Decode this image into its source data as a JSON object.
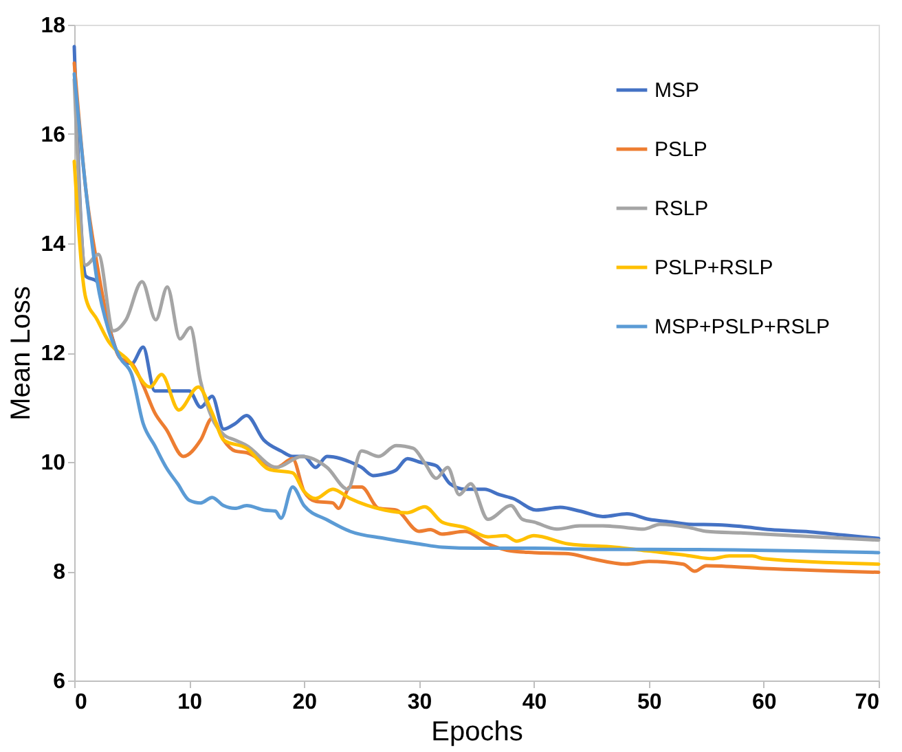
{
  "chart_data": {
    "type": "line",
    "xlabel": "Epochs",
    "ylabel": "Mean Loss",
    "xlim": [
      0,
      70
    ],
    "xticks": [
      0,
      10,
      20,
      30,
      40,
      50,
      60,
      70
    ],
    "ylim": [
      6,
      18
    ],
    "yticks": [
      6,
      8,
      10,
      12,
      14,
      16,
      18
    ],
    "grid": false,
    "legend": "top right",
    "marker": "none",
    "line_style": "solid",
    "series": [
      {
        "name": "MSP",
        "color": "#4472c4",
        "x": [
          0,
          1,
          2,
          3,
          4,
          5,
          6,
          7,
          8,
          9,
          10,
          11,
          12,
          13,
          14,
          15,
          16.5,
          18,
          19,
          20,
          21,
          22,
          23.2,
          24,
          25,
          26,
          27,
          28,
          29,
          30,
          31.5,
          32.7,
          34,
          35.7,
          37,
          38.2,
          40.2,
          42.3,
          44,
          46,
          48.1,
          50,
          52,
          53.5,
          56,
          58,
          60.6,
          64,
          67,
          70
        ],
        "values": [
          17.6,
          13.4,
          13.3,
          12.5,
          11.9,
          11.8,
          12.1,
          11.3,
          11.3,
          11.3,
          11.3,
          11.0,
          11.2,
          10.6,
          10.7,
          10.85,
          10.4,
          10.2,
          10.1,
          10.1,
          9.9,
          10.1,
          10.06,
          10.0,
          9.9,
          9.75,
          9.78,
          9.85,
          10.06,
          10.0,
          9.93,
          9.6,
          9.5,
          9.5,
          9.4,
          9.33,
          9.12,
          9.17,
          9.1,
          9.0,
          9.05,
          8.95,
          8.9,
          8.86,
          8.85,
          8.82,
          8.76,
          8.72,
          8.66,
          8.6
        ]
      },
      {
        "name": "PSLP",
        "color": "#ed7d31",
        "x": [
          0,
          1,
          2,
          3,
          4,
          5,
          6,
          7,
          8,
          9.5,
          11,
          12,
          13,
          14,
          15,
          17.6,
          19,
          20,
          21,
          22.5,
          23,
          24,
          25,
          26.5,
          28,
          30,
          31,
          32,
          34,
          36,
          38,
          40,
          43,
          45,
          48,
          50,
          53,
          54,
          55,
          60,
          70
        ],
        "values": [
          17.3,
          15.0,
          13.6,
          12.5,
          11.9,
          11.8,
          11.4,
          10.9,
          10.6,
          10.1,
          10.4,
          10.8,
          10.4,
          10.2,
          10.17,
          9.9,
          10.06,
          9.46,
          9.28,
          9.25,
          9.15,
          9.54,
          9.54,
          9.15,
          9.12,
          8.73,
          8.76,
          8.68,
          8.73,
          8.5,
          8.37,
          8.34,
          8.32,
          8.23,
          8.13,
          8.18,
          8.13,
          8.0,
          8.1,
          8.05,
          7.98
        ]
      },
      {
        "name": "RSLP",
        "color": "#a5a5a5",
        "x": [
          0,
          1,
          2.1,
          3.4,
          4.5,
          5.9,
          7.1,
          8.1,
          9.2,
          10.1,
          11,
          12,
          13,
          14,
          15,
          17.6,
          19.8,
          22,
          23.8,
          25,
          26.5,
          28,
          29.5,
          30.5,
          31.5,
          32.5,
          33.5,
          34.5,
          36,
          38,
          39,
          40,
          42,
          44,
          46,
          48,
          49.5,
          51,
          53.5,
          55,
          58,
          70
        ],
        "values": [
          17.0,
          13.6,
          13.8,
          12.4,
          12.6,
          13.3,
          12.6,
          13.2,
          12.25,
          12.46,
          11.47,
          10.8,
          10.5,
          10.4,
          10.3,
          9.9,
          10.1,
          9.9,
          9.5,
          10.2,
          10.1,
          10.3,
          10.25,
          9.98,
          9.7,
          9.9,
          9.4,
          9.6,
          8.95,
          9.2,
          8.95,
          8.9,
          8.77,
          8.83,
          8.83,
          8.8,
          8.77,
          8.86,
          8.8,
          8.73,
          8.7,
          8.57
        ]
      },
      {
        "name": "PSLP+RSLP",
        "color": "#ffc000",
        "x": [
          0,
          1,
          2,
          3,
          4.7,
          6.6,
          7.6,
          9.1,
          10.8,
          12,
          13,
          15,
          17,
          19,
          20,
          21,
          22.5,
          24,
          27,
          29,
          30.5,
          32,
          34,
          36,
          37.5,
          38.5,
          40,
          43,
          47,
          50,
          53,
          55.5,
          57,
          59,
          60,
          70
        ],
        "values": [
          15.5,
          13.0,
          12.6,
          12.2,
          11.86,
          11.37,
          11.6,
          10.95,
          11.37,
          10.9,
          10.4,
          10.25,
          9.86,
          9.8,
          9.46,
          9.33,
          9.5,
          9.33,
          9.12,
          9.07,
          9.18,
          8.9,
          8.8,
          8.63,
          8.65,
          8.55,
          8.65,
          8.5,
          8.44,
          8.37,
          8.3,
          8.23,
          8.28,
          8.28,
          8.23,
          8.13
        ]
      },
      {
        "name": "MSP+PSLP+RSLP",
        "color": "#5b9bd5",
        "x": [
          0,
          1,
          2,
          3,
          4,
          5,
          6,
          7,
          8,
          9,
          10,
          11,
          12,
          13,
          14,
          15,
          16.5,
          17.5,
          18,
          19,
          20,
          22,
          24,
          27,
          30,
          32,
          35,
          40,
          46,
          50,
          70
        ],
        "values": [
          17.1,
          15.0,
          13.3,
          12.4,
          11.9,
          11.6,
          10.7,
          10.3,
          9.9,
          9.6,
          9.3,
          9.25,
          9.35,
          9.2,
          9.15,
          9.2,
          9.12,
          9.1,
          8.97,
          9.54,
          9.2,
          8.94,
          8.73,
          8.6,
          8.5,
          8.44,
          8.42,
          8.42,
          8.4,
          8.4,
          8.34
        ]
      }
    ]
  }
}
